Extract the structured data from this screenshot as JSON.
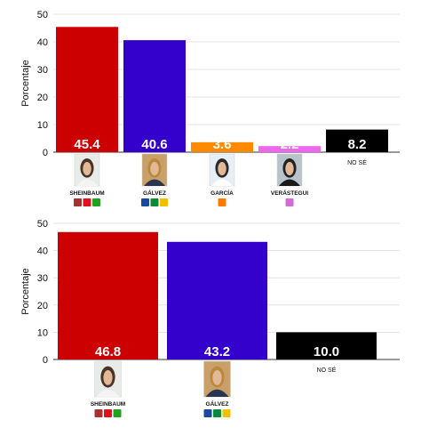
{
  "chart_data": [
    {
      "type": "bar",
      "ylabel": "Porcentaje",
      "ylim": [
        0,
        50
      ],
      "yticks": [
        0,
        10,
        20,
        30,
        40,
        50
      ],
      "grid": true,
      "categories": [
        "SHEINBAUM",
        "GÁLVEZ",
        "GARCÍA",
        "VERÁSTEGUI",
        "NO SÉ"
      ],
      "values": [
        45.4,
        40.6,
        3.6,
        2.2,
        8.2
      ],
      "labels": [
        "45.4",
        "40.6",
        "3.6",
        "2.2",
        "8.2"
      ],
      "colors": [
        "#cc0000",
        "#3300cc",
        "#ff8a00",
        "#ee66ee",
        "#000000"
      ],
      "photos": [
        true,
        true,
        true,
        true,
        false
      ],
      "party_icons": [
        [
          "morena-icon",
          "pt-icon",
          "pvem-icon"
        ],
        [
          "pan-icon",
          "pri-icon",
          "prd-icon"
        ],
        [
          "mc-icon"
        ],
        [
          "prm-icon"
        ],
        []
      ]
    },
    {
      "type": "bar",
      "ylabel": "Porcentaje",
      "ylim": [
        0,
        50
      ],
      "yticks": [
        0,
        10,
        20,
        30,
        40,
        50
      ],
      "grid": true,
      "categories": [
        "SHEINBAUM",
        "GÁLVEZ",
        "NO SÉ"
      ],
      "values": [
        46.8,
        43.2,
        10.0
      ],
      "labels": [
        "46.8",
        "43.2",
        "10.0"
      ],
      "colors": [
        "#cc0000",
        "#3300cc",
        "#000000"
      ],
      "photos": [
        true,
        true,
        false
      ],
      "party_icons": [
        [
          "morena-icon",
          "pt-icon",
          "pvem-icon"
        ],
        [
          "pan-icon",
          "pri-icon",
          "prd-icon"
        ],
        []
      ]
    }
  ],
  "party_colors": {
    "morena-icon": "#a83030",
    "pt-icon": "#e01020",
    "pvem-icon": "#22a020",
    "pan-icon": "#1a4aa0",
    "pri-icon": "#0a8a3a",
    "prd-icon": "#f2c000",
    "mc-icon": "#ff7a00",
    "prm-icon": "#d46ad4"
  }
}
